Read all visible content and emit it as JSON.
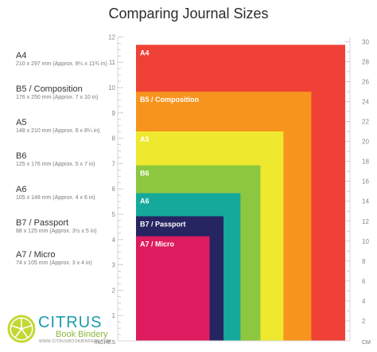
{
  "title": "Comparing Journal Sizes",
  "sizes": [
    {
      "name": "A4",
      "dims": "210 x 297 mm (Approx. 8¼ x 11¾ in)"
    },
    {
      "name": "B5 / Composition",
      "dims": "176 x 250 mm (Approx. 7 x 10 in)"
    },
    {
      "name": "A5",
      "dims": "148 x 210 mm (Approx. 6 x 8¼ in)"
    },
    {
      "name": "B6",
      "dims": "125 x 176 mm (Approx. 5 x 7 in)"
    },
    {
      "name": "A6",
      "dims": "105 x 148 mm (Approx. 4 x 6 in)"
    },
    {
      "name": "B7 / Passport",
      "dims": "88 x 125 mm (Approx. 3½ x 5 in)"
    },
    {
      "name": "A7 / Micro",
      "dims": "74 x 105 mm (Approx. 3 x 4 in)"
    }
  ],
  "boxes": [
    {
      "label": "A4",
      "width_in": 8.27,
      "height_in": 11.69,
      "color": "#ef4136"
    },
    {
      "label": "B5 / Composition",
      "width_in": 6.93,
      "height_in": 9.84,
      "color": "#f7941d"
    },
    {
      "label": "A5",
      "width_in": 5.83,
      "height_in": 8.27,
      "color": "#eee82f"
    },
    {
      "label": "B6",
      "width_in": 4.92,
      "height_in": 6.93,
      "color": "#8dc63f"
    },
    {
      "label": "A6",
      "width_in": 4.13,
      "height_in": 5.83,
      "color": "#15a99c"
    },
    {
      "label": "B7 / Passport",
      "width_in": 3.46,
      "height_in": 4.92,
      "color": "#272462"
    },
    {
      "label": "A7 / Micro",
      "width_in": 2.91,
      "height_in": 4.13,
      "color": "#dd1b5e"
    }
  ],
  "axes": {
    "inches_label": "INCHES",
    "cm_label": "CM",
    "inch_ticks": [
      "1",
      "2",
      "3",
      "4",
      "5",
      "6",
      "7",
      "8",
      "9",
      "10",
      "11",
      "12"
    ],
    "cm_ticks": [
      "2",
      "4",
      "6",
      "8",
      "10",
      "12",
      "14",
      "16",
      "18",
      "20",
      "22",
      "24",
      "26",
      "28",
      "30"
    ]
  },
  "logo": {
    "main": "CITRUS",
    "sub": "Book Bindery",
    "web": "WWW.CITRUSBOOKBINDERY.COM",
    "colors": {
      "teal": "#1a9cab",
      "green": "#8ab93c",
      "lime": "#c2d833"
    }
  }
}
